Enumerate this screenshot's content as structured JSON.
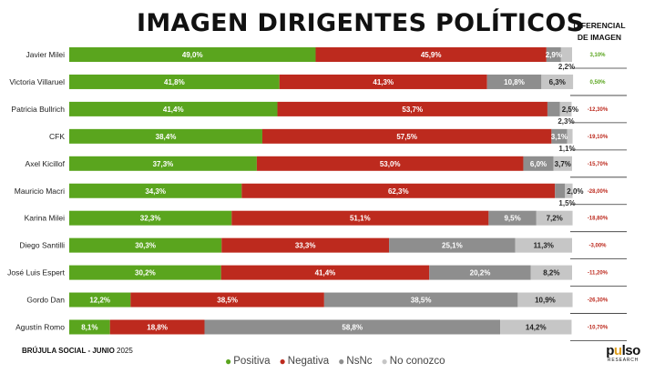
{
  "chart_data": {
    "type": "stacked-bar-horizontal",
    "title": "IMAGEN DIRIGENTES POLÍTICOS",
    "diff_header": [
      "DIFERENCIAL",
      "DE IMAGEN"
    ],
    "categories": [
      "Javier Milei",
      "Victoria Villaruel",
      "Patricia Bullrich",
      "CFK",
      "Axel Kicillof",
      "Mauricio Macri",
      "Karina Milei",
      "Diego Santilli",
      "José Luis Espert",
      "Gordo Dan",
      "Agustín Romo"
    ],
    "series": [
      {
        "name": "Positiva",
        "color": "#5aa51e",
        "values": [
          49.0,
          41.8,
          41.4,
          38.4,
          37.3,
          34.3,
          32.3,
          30.3,
          30.2,
          12.2,
          8.1
        ],
        "labels": [
          "49,0%",
          "41,8%",
          "41,4%",
          "38,4%",
          "37,3%",
          "34,3%",
          "32,3%",
          "30,3%",
          "30,2%",
          "12,2%",
          "8,1%"
        ]
      },
      {
        "name": "Negativa",
        "color": "#bd2a1e",
        "values": [
          45.9,
          41.3,
          53.7,
          57.5,
          53.0,
          62.3,
          51.1,
          33.3,
          41.4,
          38.5,
          18.8
        ],
        "labels": [
          "45,9%",
          "41,3%",
          "53,7%",
          "57,5%",
          "53,0%",
          "62,3%",
          "51,1%",
          "33,3%",
          "41,4%",
          "38,5%",
          "18,8%"
        ]
      },
      {
        "name": "NsNc",
        "color": "#8e8e8e",
        "values": [
          2.9,
          10.8,
          2.5,
          3.1,
          6.0,
          2.0,
          9.5,
          25.1,
          20.2,
          38.5,
          58.8
        ],
        "labels": [
          "2,9%",
          "10,8%",
          "2,5%",
          "3,1%",
          "6,0%",
          "2,0%",
          "9,5%",
          "25,1%",
          "20,2%",
          "38,5%",
          "58,8%"
        ]
      },
      {
        "name": "No conozco",
        "color": "#c6c6c6",
        "values": [
          2.2,
          6.3,
          2.3,
          1.1,
          3.7,
          1.5,
          7.2,
          11.3,
          8.2,
          10.9,
          14.2
        ],
        "labels": [
          "2,2%",
          "6,3%",
          "2,3%",
          "1,1%",
          "3,7%",
          "1,5%",
          "7,2%",
          "11,3%",
          "8,2%",
          "10,9%",
          "14,2%"
        ]
      }
    ],
    "diferencial": {
      "values": [
        3.1,
        0.5,
        -12.3,
        -19.1,
        -15.7,
        -28.0,
        -18.8,
        -3.0,
        -11.2,
        -26.3,
        -10.7
      ],
      "labels": [
        "3,10%",
        "0,50%",
        "-12,30%",
        "-19,10%",
        "-15,70%",
        "-28,00%",
        "-18,80%",
        "-3,00%",
        "-11,20%",
        "-26,30%",
        "-10,70%"
      ],
      "positive_color": "#5aa51e",
      "negative_color": "#bd2a1e"
    },
    "xlim": [
      0,
      100
    ],
    "grid": false,
    "legend_position": "bottom"
  },
  "footer": {
    "bold": "BRÚJULA SOCIAL - JUNIO",
    "year": "2025"
  },
  "logo": {
    "word_start": "p",
    "word_mid": "u",
    "word_end": "lso",
    "sub": "RESEARCH"
  }
}
